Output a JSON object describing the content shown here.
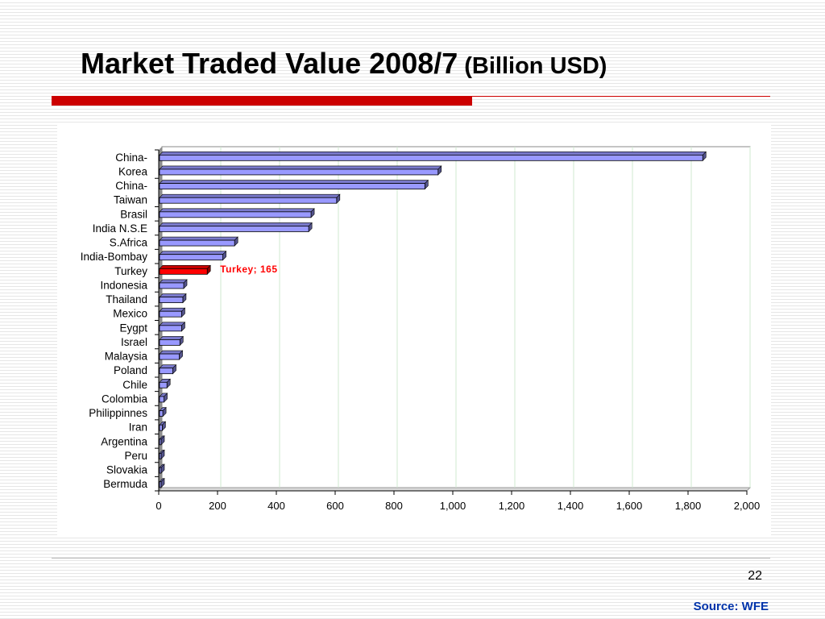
{
  "slide": {
    "title_main": "Market Traded Value 2008/7",
    "title_sub": "(Billion USD)",
    "page_number": "22",
    "source": "Source: WFE",
    "accent_color": "#cc0000",
    "source_color": "#0033aa"
  },
  "chart_data": {
    "type": "bar",
    "orientation": "horizontal",
    "title": "",
    "xlabel": "",
    "ylabel": "",
    "xlim": [
      0,
      2000
    ],
    "x_ticks": [
      "0",
      "200",
      "400",
      "600",
      "800",
      "1,000",
      "1,200",
      "1,400",
      "1,600",
      "1,800",
      "2,000"
    ],
    "grid": "vertical",
    "categories": [
      "China-Korea",
      "China-Taiwan",
      "Brasil",
      "India N.S.E",
      "S.Africa",
      "India-Bombay",
      "Turkey",
      "Indonesia",
      "Thailand",
      "Mexico",
      "Eygpt",
      "Israel",
      "Malaysia",
      "Poland",
      "Chile",
      "Colombia",
      "Philippinnes",
      "Iran",
      "Argentina",
      "Peru",
      "Slovakia",
      "Bermuda"
    ],
    "category_display": [
      [
        "China-",
        "Korea"
      ],
      [
        "China-",
        "Taiwan"
      ],
      [
        "Brasil"
      ],
      [
        "India N.S.E"
      ],
      [
        "S.Africa"
      ],
      [
        "India-Bombay"
      ],
      [
        "Turkey"
      ],
      [
        "Indonesia"
      ],
      [
        "Thailand"
      ],
      [
        "Mexico"
      ],
      [
        "Eygpt"
      ],
      [
        "Israel"
      ],
      [
        "Malaysia"
      ],
      [
        "Poland"
      ],
      [
        "Chile"
      ],
      [
        "Colombia"
      ],
      [
        "Philippinnes"
      ],
      [
        "Iran"
      ],
      [
        "Argentina"
      ],
      [
        "Peru"
      ],
      [
        "Slovakia"
      ],
      [
        "Bermuda"
      ]
    ],
    "bar_groups": [
      [
        1850,
        950
      ],
      [
        905,
        605
      ],
      [
        518
      ],
      [
        510
      ],
      [
        258
      ],
      [
        218
      ],
      [
        165
      ],
      [
        85
      ],
      [
        82
      ],
      [
        78
      ],
      [
        78
      ],
      [
        72
      ],
      [
        70
      ],
      [
        48
      ],
      [
        28
      ],
      [
        18
      ],
      [
        14
      ],
      [
        12
      ],
      [
        6
      ],
      [
        5
      ],
      [
        4
      ],
      [
        3
      ]
    ],
    "series_color": "#9999ff",
    "highlight": {
      "category": "Turkey",
      "value": 165,
      "label": "Turkey; 165",
      "color": "#ff0000"
    }
  }
}
